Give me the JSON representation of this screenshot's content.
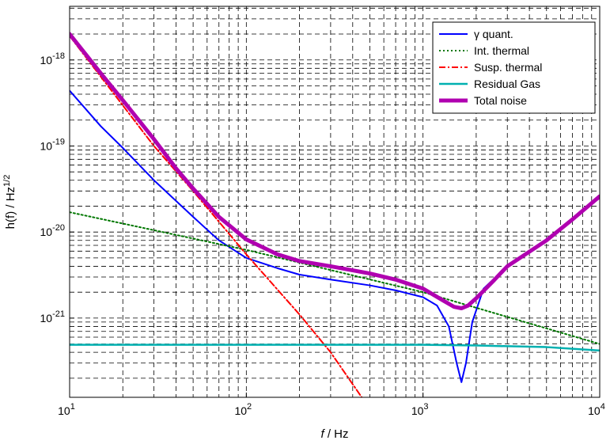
{
  "chart_data": {
    "type": "line",
    "x_scale": "log",
    "y_scale": "log",
    "xlim": [
      10,
      10000
    ],
    "ylim": [
      1.2e-22,
      4.2e-18
    ],
    "grid": true,
    "legend_position": "top-right",
    "xlabel_italic": "f",
    "xlabel_rest": " / Hz",
    "ylabel": "h(f) / Hz",
    "ylabel_sup": "1/2",
    "x_ticks": [
      {
        "value": 10,
        "base": "10",
        "exp": "1"
      },
      {
        "value": 100,
        "base": "10",
        "exp": "2"
      },
      {
        "value": 1000,
        "base": "10",
        "exp": "3"
      },
      {
        "value": 10000,
        "base": "10",
        "exp": "4"
      }
    ],
    "y_ticks": [
      {
        "value": 1e-21,
        "base": "10",
        "exp": "-21"
      },
      {
        "value": 1e-20,
        "base": "10",
        "exp": "-20"
      },
      {
        "value": 1e-19,
        "base": "10",
        "exp": "-19"
      },
      {
        "value": 1e-18,
        "base": "10",
        "exp": "-18"
      }
    ],
    "series": [
      {
        "name": "γ quant.",
        "color": "#0000ff",
        "dash": "",
        "width": 2,
        "x": [
          10,
          15,
          20,
          30,
          50,
          70,
          100,
          150,
          200,
          300,
          500,
          700,
          1000,
          1200,
          1400,
          1550,
          1650,
          1750,
          1900,
          2200,
          3000,
          5000,
          7000,
          10000
        ],
        "y": [
          4.4e-19,
          1.7e-19,
          9.5e-20,
          4e-20,
          1.5e-20,
          8e-21,
          5e-21,
          3.8e-21,
          3.2e-21,
          2.8e-21,
          2.4e-21,
          2.1e-21,
          1.75e-21,
          1.4e-21,
          8e-22,
          3e-22,
          1.8e-22,
          3e-22,
          9e-22,
          2.2e-21,
          4e-21,
          8e-21,
          1.4e-20,
          2.5e-20
        ]
      },
      {
        "name": "Int. thermal",
        "color": "#007700",
        "dash": "2,3",
        "width": 2,
        "x": [
          10,
          100,
          1000,
          10000
        ],
        "y": [
          1.7e-20,
          6.2e-21,
          2e-21,
          5e-22
        ]
      },
      {
        "name": "Susp. thermal",
        "color": "#ff0000",
        "dash": "8,3,2,3",
        "width": 2,
        "x": [
          10,
          30,
          50,
          100,
          200,
          300,
          450
        ],
        "y": [
          1.9e-18,
          1e-19,
          3e-20,
          5.5e-21,
          1.1e-21,
          4e-22,
          1.2e-22
        ]
      },
      {
        "name": "Residual Gas",
        "color": "#00b0b0",
        "dash": "",
        "width": 2.5,
        "x": [
          10,
          100,
          1000,
          2000,
          5000,
          10000
        ],
        "y": [
          4.9e-22,
          4.9e-22,
          4.9e-22,
          4.8e-22,
          4.6e-22,
          4.2e-22
        ]
      },
      {
        "name": "Total noise",
        "color": "#b000b0",
        "dash": "",
        "width": 5,
        "x": [
          10,
          15,
          20,
          30,
          40,
          50,
          70,
          100,
          150,
          200,
          300,
          500,
          700,
          1000,
          1300,
          1500,
          1650,
          1800,
          2000,
          2500,
          3000,
          5000,
          7000,
          10000
        ],
        "y": [
          2e-18,
          7e-19,
          3.4e-19,
          1.2e-19,
          5.5e-20,
          3.2e-20,
          1.5e-20,
          8.2e-21,
          5.5e-21,
          4.6e-21,
          4e-21,
          3.3e-21,
          2.8e-21,
          2.2e-21,
          1.6e-21,
          1.35e-21,
          1.3e-21,
          1.4e-21,
          1.7e-21,
          2.7e-21,
          4e-21,
          8e-21,
          1.4e-20,
          2.6e-20
        ]
      }
    ]
  }
}
